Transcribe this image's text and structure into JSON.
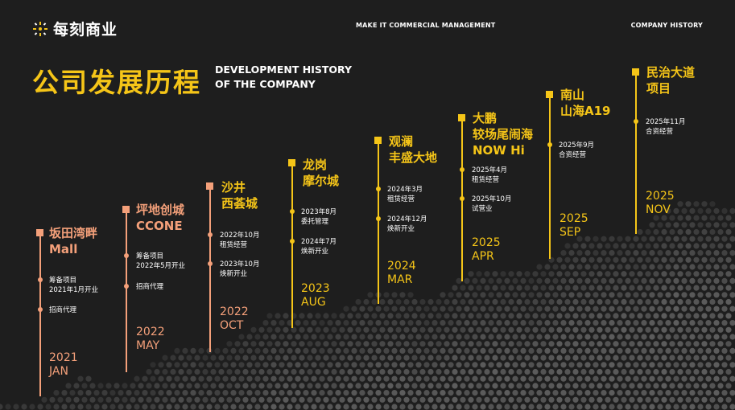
{
  "header": {
    "logo_text": "每刻商业",
    "center_text": "MAKE IT COMMERCIAL MANAGEMENT",
    "right_text": "COMPANY HISTORY"
  },
  "title": {
    "cn": "公司发展历程",
    "en_line1": "DEVELOPMENT HISTORY",
    "en_line2": "OF THE COMPANY"
  },
  "colors": {
    "background": "#1e1e1e",
    "accent_yellow": "#f5c518",
    "accent_pink": "#f4a07a"
  },
  "milestones": [
    {
      "name_line1": "坂田湾畔",
      "name_line2": "Mall",
      "events": [
        {
          "line1": "筹备项目",
          "line2": "2021年1月开业"
        },
        {
          "line1": "招商代理",
          "line2": ""
        }
      ],
      "year": "2021",
      "month": "JAN"
    },
    {
      "name_line1": "坪地创城",
      "name_line2": "CCONE",
      "events": [
        {
          "line1": "筹备项目",
          "line2": "2022年5月开业"
        },
        {
          "line1": "招商代理",
          "line2": ""
        }
      ],
      "year": "2022",
      "month": "MAY"
    },
    {
      "name_line1": "沙井",
      "name_line2": "西荟城",
      "events": [
        {
          "line1": "2022年10月",
          "line2": "租赁经营"
        },
        {
          "line1": "2023年10月",
          "line2": "焕新开业"
        }
      ],
      "year": "2022",
      "month": "OCT"
    },
    {
      "name_line1": "龙岗",
      "name_line2": "摩尔城",
      "events": [
        {
          "line1": "2023年8月",
          "line2": "委托管理"
        },
        {
          "line1": "2024年7月",
          "line2": "焕新开业"
        }
      ],
      "year": "2023",
      "month": "AUG"
    },
    {
      "name_line1": "观澜",
      "name_line2": "丰盛大地",
      "events": [
        {
          "line1": "2024年3月",
          "line2": "租赁经营"
        },
        {
          "line1": "2024年12月",
          "line2": "焕新开业"
        }
      ],
      "year": "2024",
      "month": "MAR"
    },
    {
      "name_line1": "大鹏",
      "name_line2": "较场尾闹海",
      "name_line3": "NOW Hi",
      "events": [
        {
          "line1": "2025年4月",
          "line2": "租赁经营"
        },
        {
          "line1": "2025年10月",
          "line2": "试营业"
        }
      ],
      "year": "2025",
      "month": "APR"
    },
    {
      "name_line1": "南山",
      "name_line2": "山海A19",
      "events": [
        {
          "line1": "2025年9月",
          "line2": "合资经营"
        }
      ],
      "year": "2025",
      "month": "SEP"
    },
    {
      "name_line1": "民治大道",
      "name_line2": "项目",
      "events": [
        {
          "line1": "2025年11月",
          "line2": "合资经营"
        }
      ],
      "year": "2025",
      "month": "NOV"
    }
  ]
}
